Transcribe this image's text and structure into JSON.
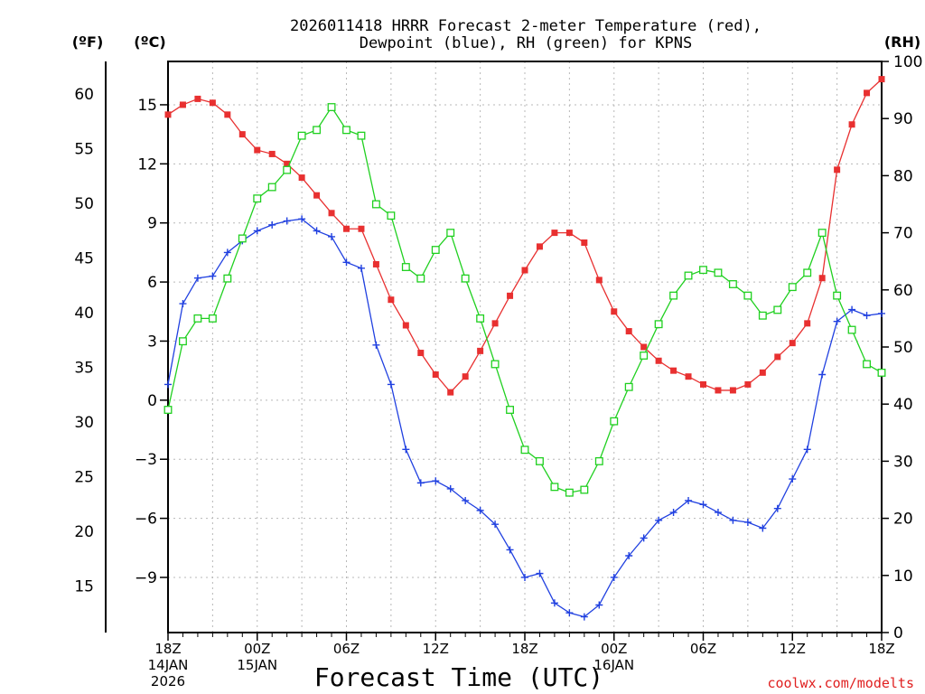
{
  "chart_data": {
    "type": "line",
    "title_line1": "2026011418 HRRR Forecast 2-meter Temperature (red),",
    "title_line2": "Dewpoint (blue), RH (green) for KPNS",
    "xlabel": "Forecast Time (UTC)",
    "unit_labels": {
      "fahrenheit": "(ºF)",
      "celsius": "(ºC)",
      "rh": "(RH)"
    },
    "credit": "coolwx.com/modelts",
    "x_range_hours": [
      0,
      48
    ],
    "celsius_range": [
      -11.8,
      17.2
    ],
    "rh_range": [
      0,
      100
    ],
    "x_ticks": [
      {
        "hour": 0,
        "label": "18Z",
        "date": "14JAN",
        "year": "2026"
      },
      {
        "hour": 6,
        "label": "00Z",
        "date": "15JAN",
        "year": ""
      },
      {
        "hour": 12,
        "label": "06Z",
        "date": "",
        "year": ""
      },
      {
        "hour": 18,
        "label": "12Z",
        "date": "",
        "year": ""
      },
      {
        "hour": 24,
        "label": "18Z",
        "date": "",
        "year": ""
      },
      {
        "hour": 30,
        "label": "00Z",
        "date": "16JAN",
        "year": ""
      },
      {
        "hour": 36,
        "label": "06Z",
        "date": "",
        "year": ""
      },
      {
        "hour": 42,
        "label": "12Z",
        "date": "",
        "year": ""
      },
      {
        "hour": 48,
        "label": "18Z",
        "date": "",
        "year": ""
      }
    ],
    "celsius_ticks": [
      "15",
      "12",
      "9",
      "6",
      "3",
      "0",
      "−3",
      "−6",
      "−9"
    ],
    "fahrenheit_ticks": [
      "60",
      "55",
      "50",
      "45",
      "40",
      "35",
      "30",
      "25",
      "20",
      "15"
    ],
    "rh_ticks": [
      "100",
      "90",
      "80",
      "70",
      "60",
      "50",
      "40",
      "30",
      "20",
      "10",
      "0"
    ],
    "series": [
      {
        "name": "2-meter Temperature",
        "units": "°C",
        "color": "#e83030",
        "marker": "square-filled",
        "values": [
          14.5,
          15.0,
          15.3,
          15.1,
          14.5,
          13.5,
          12.7,
          12.5,
          12.0,
          11.3,
          10.4,
          9.5,
          8.7,
          8.7,
          6.9,
          5.1,
          3.8,
          2.4,
          1.3,
          0.4,
          1.2,
          2.5,
          3.9,
          5.3,
          6.6,
          7.8,
          8.5,
          8.5,
          8.0,
          6.1,
          4.5,
          3.5,
          2.7,
          2.0,
          1.5,
          1.2,
          0.8,
          0.5,
          0.5,
          0.8,
          1.4,
          2.2,
          2.9,
          3.9,
          6.2,
          11.7,
          14.0,
          15.6,
          16.3
        ]
      },
      {
        "name": "Dewpoint",
        "units": "°C",
        "color": "#2040e0",
        "marker": "plus",
        "values": [
          0.8,
          4.9,
          6.2,
          6.3,
          7.5,
          8.1,
          8.6,
          8.9,
          9.1,
          9.2,
          8.6,
          8.3,
          7.0,
          6.7,
          2.8,
          0.8,
          -2.5,
          -4.2,
          -4.1,
          -4.5,
          -5.1,
          -5.6,
          -6.3,
          -7.6,
          -9.0,
          -8.8,
          -10.3,
          -10.8,
          -11.0,
          -10.4,
          -9.0,
          -7.9,
          -7.0,
          -6.1,
          -5.7,
          -5.1,
          -5.3,
          -5.7,
          -6.1,
          -6.2,
          -6.5,
          -5.5,
          -4.0,
          -2.5,
          1.3,
          4.0,
          4.6,
          4.3,
          4.4
        ]
      },
      {
        "name": "RH",
        "units": "%",
        "color": "#20d020",
        "marker": "square-open",
        "values": [
          39,
          51,
          55,
          55,
          62,
          69,
          76,
          78,
          81,
          87,
          88,
          92,
          88,
          87,
          75,
          73,
          64,
          62,
          67,
          70,
          62,
          55,
          47,
          39,
          32,
          30,
          25.5,
          24.5,
          25,
          30,
          37,
          43,
          48.5,
          54,
          59,
          62.5,
          63.5,
          63,
          61,
          59,
          55.5,
          56.5,
          60.5,
          63,
          70,
          59,
          53,
          47,
          45.5
        ]
      }
    ]
  }
}
